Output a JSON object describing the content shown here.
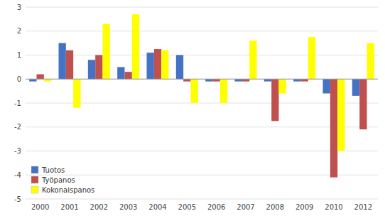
{
  "chart_data": {
    "type": "bar",
    "categories": [
      "2000",
      "2001",
      "2002",
      "2003",
      "2004",
      "2005",
      "2006",
      "2007",
      "2008",
      "2009",
      "2010",
      "2012"
    ],
    "series": [
      {
        "name": "Tuotos",
        "color": "#4472c4",
        "values": [
          -0.1,
          1.5,
          0.8,
          0.5,
          1.1,
          1.0,
          -0.1,
          -0.1,
          -0.1,
          -0.1,
          -0.6,
          -0.7
        ]
      },
      {
        "name": "Työpanos",
        "color": "#c0504d",
        "values": [
          0.2,
          1.2,
          1.0,
          0.3,
          1.25,
          -0.1,
          -0.1,
          -0.1,
          -1.75,
          -0.1,
          -4.1,
          -2.1
        ]
      },
      {
        "name": "Kokonaispanos",
        "color": "#ffff00",
        "values": [
          -0.1,
          -1.2,
          2.3,
          2.7,
          1.2,
          -1.0,
          -1.0,
          1.6,
          -0.6,
          1.75,
          -3.0,
          1.5
        ]
      }
    ],
    "ylim": [
      -5,
      3
    ],
    "yticks": [
      -5,
      -4,
      -3,
      -2,
      -1,
      0,
      1,
      2,
      3
    ],
    "grid": true,
    "legend": "lower left"
  }
}
